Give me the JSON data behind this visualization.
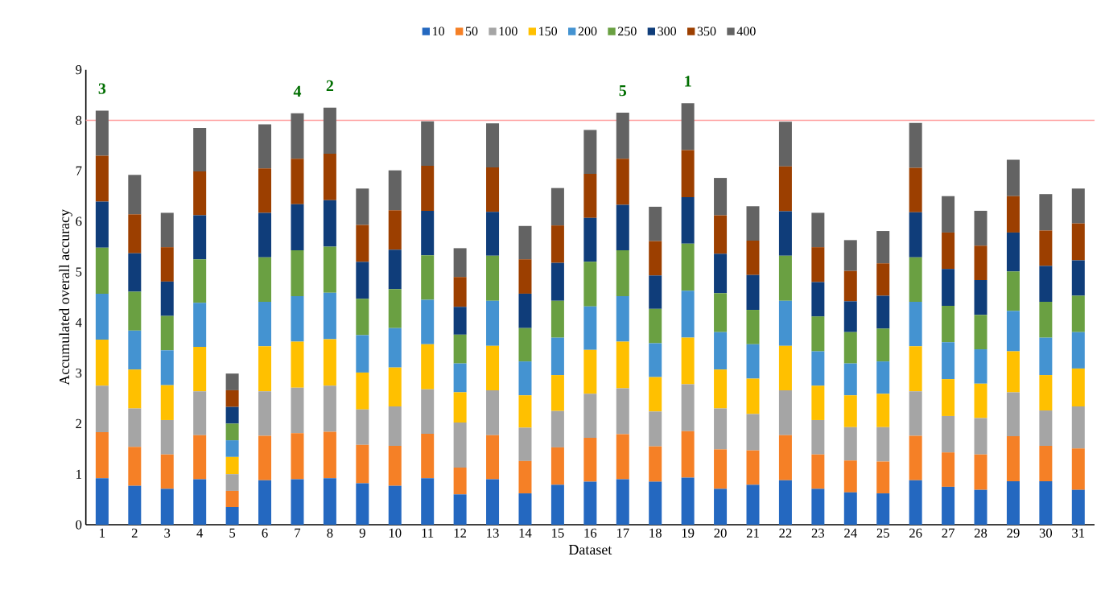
{
  "chart_data": {
    "type": "bar",
    "stacked": true,
    "xlabel": "Dataset",
    "ylabel": "Accumulated overall accuracy",
    "categories": [
      "1",
      "2",
      "3",
      "4",
      "5",
      "6",
      "7",
      "8",
      "9",
      "10",
      "11",
      "12",
      "13",
      "14",
      "15",
      "16",
      "17",
      "18",
      "19",
      "20",
      "21",
      "22",
      "23",
      "24",
      "25",
      "26",
      "27",
      "28",
      "29",
      "30",
      "31"
    ],
    "series": [
      {
        "name": "10",
        "color": "#2468c0",
        "values": [
          0.92,
          0.77,
          0.71,
          0.9,
          0.35,
          0.88,
          0.9,
          0.92,
          0.82,
          0.77,
          0.92,
          0.6,
          0.9,
          0.62,
          0.79,
          0.85,
          0.9,
          0.85,
          0.93,
          0.71,
          0.79,
          0.88,
          0.71,
          0.64,
          0.62,
          0.88,
          0.75,
          0.69,
          0.86,
          0.86,
          0.69
        ]
      },
      {
        "name": "50",
        "color": "#f58026",
        "values": [
          0.91,
          0.77,
          0.68,
          0.87,
          0.32,
          0.88,
          0.91,
          0.92,
          0.76,
          0.79,
          0.88,
          0.53,
          0.87,
          0.64,
          0.74,
          0.87,
          0.89,
          0.7,
          0.92,
          0.78,
          0.68,
          0.89,
          0.68,
          0.63,
          0.63,
          0.88,
          0.68,
          0.7,
          0.89,
          0.7,
          0.82
        ]
      },
      {
        "name": "100",
        "color": "#a5a5a5",
        "values": [
          0.92,
          0.76,
          0.68,
          0.87,
          0.33,
          0.88,
          0.9,
          0.91,
          0.7,
          0.78,
          0.88,
          0.89,
          0.89,
          0.66,
          0.72,
          0.87,
          0.91,
          0.69,
          0.93,
          0.81,
          0.72,
          0.89,
          0.68,
          0.66,
          0.68,
          0.88,
          0.72,
          0.72,
          0.87,
          0.7,
          0.83
        ]
      },
      {
        "name": "150",
        "color": "#ffc000",
        "values": [
          0.91,
          0.77,
          0.69,
          0.88,
          0.34,
          0.89,
          0.91,
          0.92,
          0.73,
          0.77,
          0.89,
          0.6,
          0.88,
          0.64,
          0.71,
          0.87,
          0.92,
          0.68,
          0.92,
          0.77,
          0.7,
          0.88,
          0.68,
          0.63,
          0.66,
          0.89,
          0.73,
          0.68,
          0.81,
          0.7,
          0.75
        ]
      },
      {
        "name": "200",
        "color": "#4493d1",
        "values": [
          0.91,
          0.77,
          0.69,
          0.87,
          0.33,
          0.88,
          0.9,
          0.92,
          0.74,
          0.78,
          0.88,
          0.57,
          0.89,
          0.67,
          0.74,
          0.86,
          0.9,
          0.67,
          0.93,
          0.74,
          0.68,
          0.89,
          0.68,
          0.63,
          0.64,
          0.88,
          0.73,
          0.68,
          0.8,
          0.74,
          0.72
        ]
      },
      {
        "name": "250",
        "color": "#6aa042",
        "values": [
          0.91,
          0.77,
          0.68,
          0.86,
          0.33,
          0.88,
          0.91,
          0.91,
          0.72,
          0.77,
          0.88,
          0.57,
          0.89,
          0.66,
          0.73,
          0.88,
          0.91,
          0.68,
          0.93,
          0.77,
          0.68,
          0.89,
          0.69,
          0.62,
          0.65,
          0.88,
          0.72,
          0.68,
          0.78,
          0.71,
          0.72
        ]
      },
      {
        "name": "300",
        "color": "#0f3d7a",
        "values": [
          0.91,
          0.76,
          0.68,
          0.87,
          0.33,
          0.88,
          0.91,
          0.92,
          0.73,
          0.78,
          0.88,
          0.55,
          0.87,
          0.68,
          0.75,
          0.87,
          0.9,
          0.66,
          0.92,
          0.78,
          0.69,
          0.88,
          0.68,
          0.61,
          0.65,
          0.89,
          0.73,
          0.69,
          0.77,
          0.71,
          0.7
        ]
      },
      {
        "name": "350",
        "color": "#9c3f00",
        "values": [
          0.91,
          0.77,
          0.68,
          0.87,
          0.33,
          0.88,
          0.9,
          0.92,
          0.73,
          0.78,
          0.89,
          0.59,
          0.88,
          0.68,
          0.74,
          0.87,
          0.91,
          0.68,
          0.93,
          0.76,
          0.68,
          0.89,
          0.69,
          0.6,
          0.64,
          0.88,
          0.72,
          0.68,
          0.72,
          0.7,
          0.73
        ]
      },
      {
        "name": "400",
        "color": "#636363",
        "values": [
          0.89,
          0.78,
          0.68,
          0.86,
          0.33,
          0.87,
          0.9,
          0.91,
          0.72,
          0.79,
          0.88,
          0.57,
          0.87,
          0.66,
          0.74,
          0.87,
          0.91,
          0.68,
          0.93,
          0.74,
          0.68,
          0.88,
          0.68,
          0.61,
          0.64,
          0.89,
          0.72,
          0.69,
          0.72,
          0.72,
          0.69
        ]
      }
    ],
    "ylim": [
      0,
      9
    ],
    "yticks": [
      0,
      1,
      2,
      3,
      4,
      5,
      6,
      7,
      8,
      9
    ],
    "ref_lines": [
      {
        "axis": "y",
        "value": 8,
        "color": "#ff9c9c"
      }
    ],
    "annotations": [
      {
        "text": "3",
        "x": "1",
        "y": 8.19
      },
      {
        "text": "4",
        "x": "7",
        "y": 8.14
      },
      {
        "text": "2",
        "x": "8",
        "y": 8.25
      },
      {
        "text": "5",
        "x": "17",
        "y": 8.15
      },
      {
        "text": "1",
        "x": "19",
        "y": 8.34
      }
    ],
    "legend": "top",
    "grid": false
  }
}
